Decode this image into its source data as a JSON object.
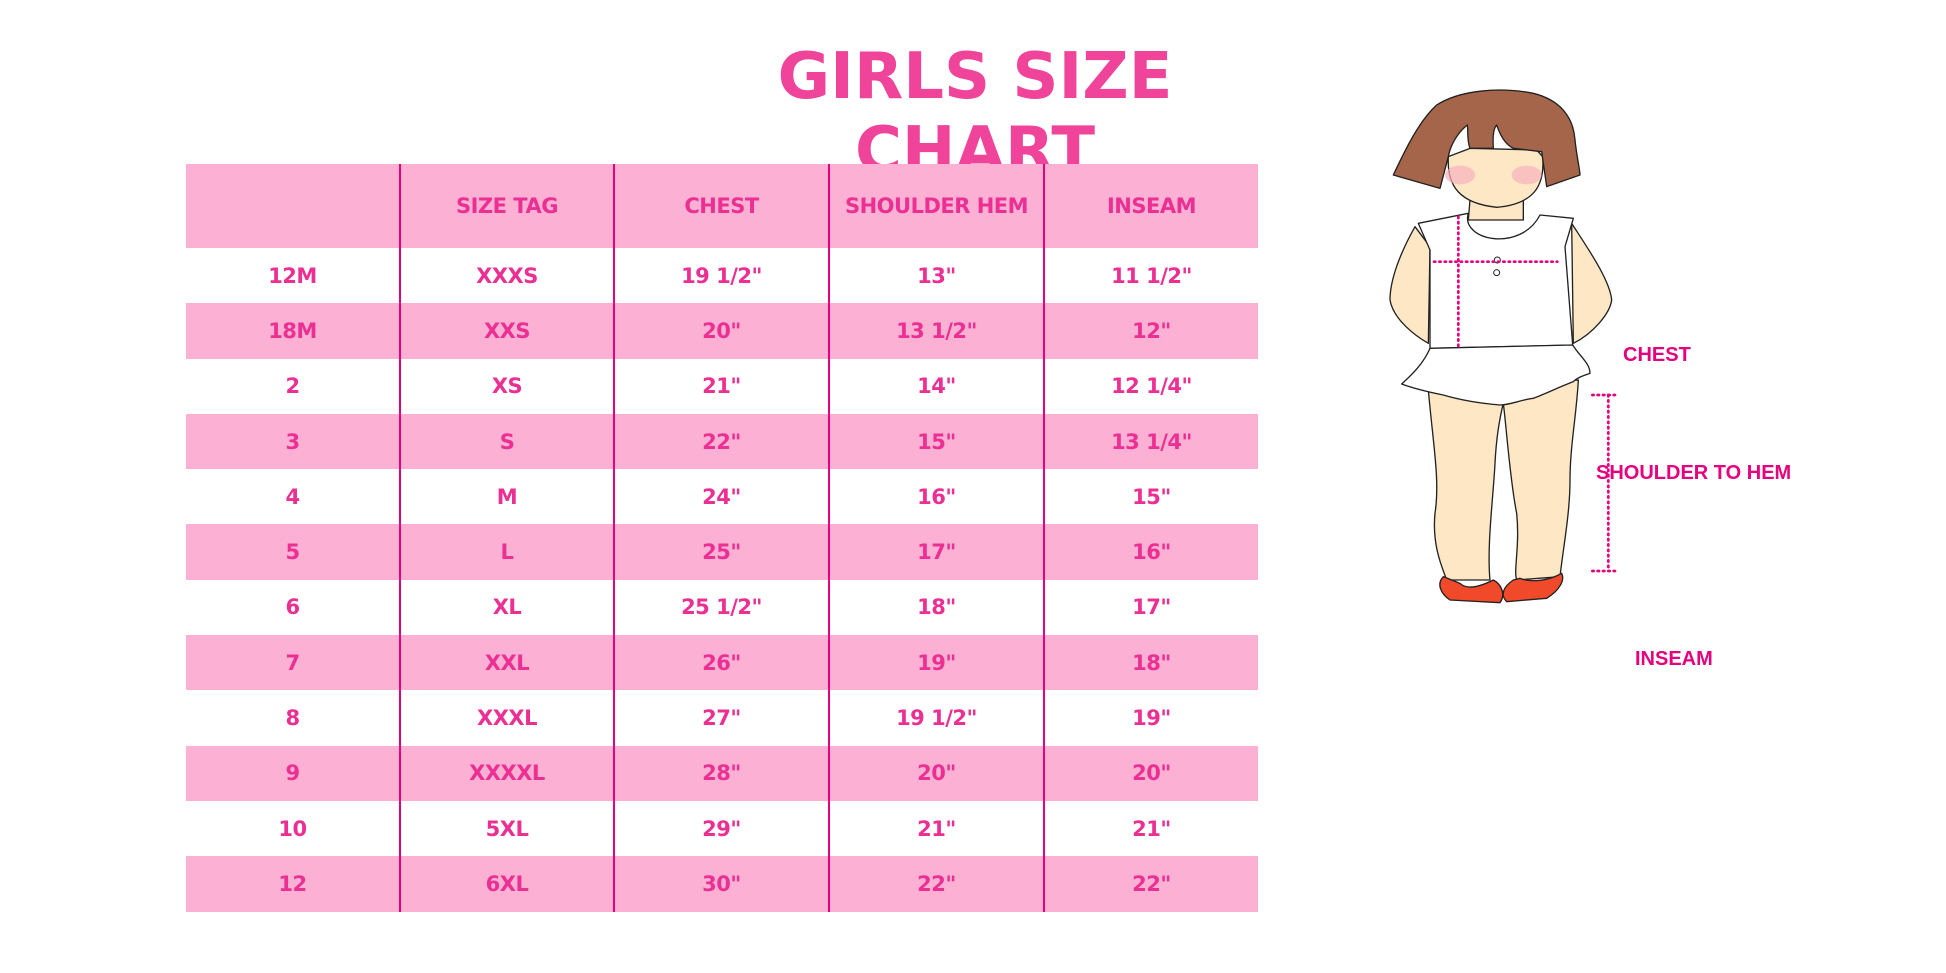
{
  "title": "GIRLS SIZE CHART",
  "colors": {
    "accent": "#ec2f93",
    "header_bg": "#fbb0d4",
    "divider": "#e6007e"
  },
  "table": {
    "headers": [
      "",
      "SIZE TAG",
      "CHEST",
      "SHOULDER HEM",
      "INSEAM"
    ],
    "rows": [
      [
        "12M",
        "XXXS",
        "19 1/2\"",
        "13\"",
        "11 1/2\""
      ],
      [
        "18M",
        "XXS",
        "20\"",
        "13 1/2\"",
        "12\""
      ],
      [
        "2",
        "XS",
        "21\"",
        "14\"",
        "12 1/4\""
      ],
      [
        "3",
        "S",
        "22\"",
        "15\"",
        "13 1/4\""
      ],
      [
        "4",
        "M",
        "24\"",
        "16\"",
        "15\""
      ],
      [
        "5",
        "L",
        "25\"",
        "17\"",
        "16\""
      ],
      [
        "6",
        "XL",
        "25 1/2\"",
        "18\"",
        "17\""
      ],
      [
        "7",
        "XXL",
        "26\"",
        "19\"",
        "18\""
      ],
      [
        "8",
        "XXXL",
        "27\"",
        "19 1/2\"",
        "19\""
      ],
      [
        "9",
        "XXXXL",
        "28\"",
        "20\"",
        "20\""
      ],
      [
        "10",
        "5XL",
        "29\"",
        "21\"",
        "21\""
      ],
      [
        "12",
        "6XL",
        "30\"",
        "22\"",
        "22\""
      ]
    ]
  },
  "figure": {
    "labels": {
      "chest": "CHEST",
      "shoulder": "SHOULDER TO HEM",
      "inseam": "INSEAM"
    }
  }
}
